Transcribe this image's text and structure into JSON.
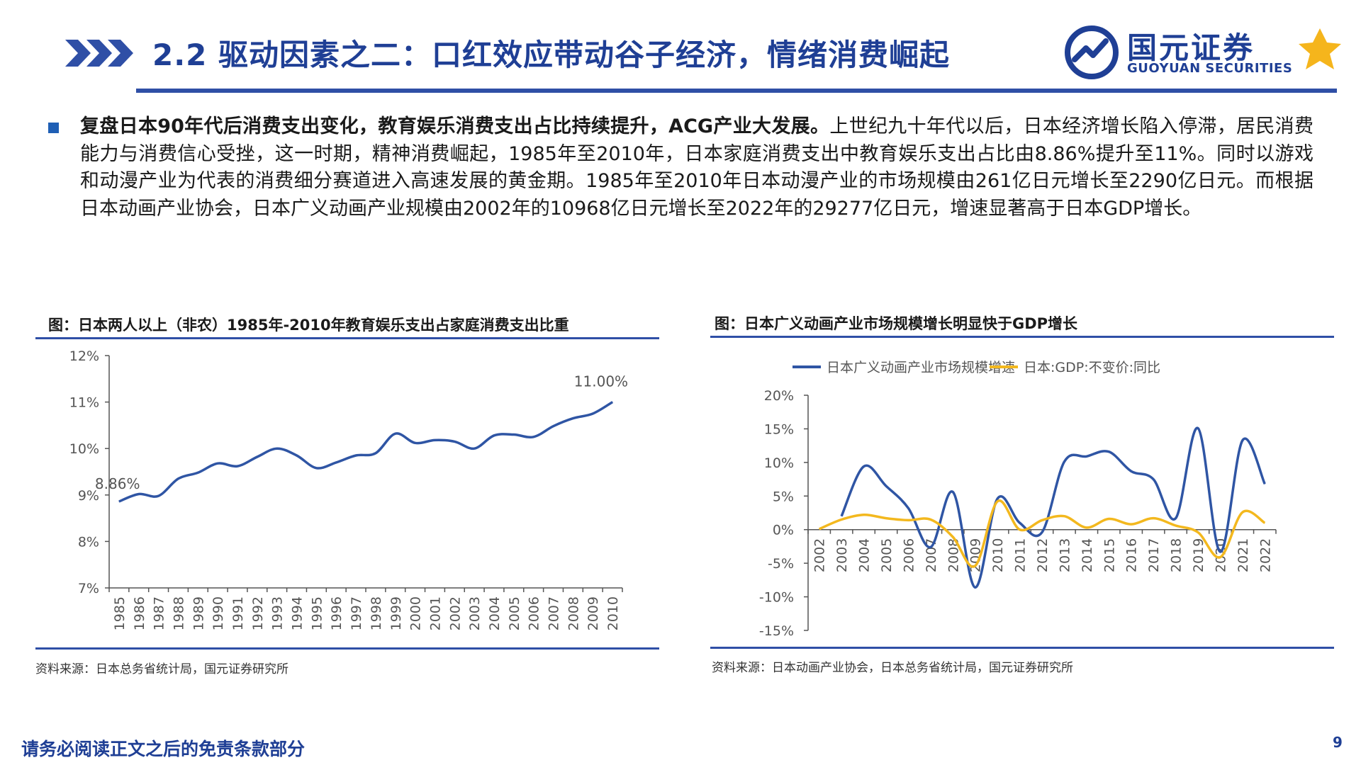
{
  "header": {
    "title": "2.2 驱动因素之二：口红效应带动谷子经济，情绪消费崛起",
    "logo_cn": "国元证券",
    "logo_en": "GUOYUAN SECURITIES"
  },
  "summary": {
    "bold": "复盘日本90年代后消费支出变化，教育娱乐消费支出占比持续提升，ACG产业大发展。",
    "text": "上世纪九十年代以后，日本经济增长陷入停滞，居民消费能力与消费信心受挫，这一时期，精神消费崛起，1985年至2010年，日本家庭消费支出中教育娱乐支出占比由8.86%提升至11%。同时以游戏和动漫产业为代表的消费细分赛道进入高速发展的黄金期。1985年至2010年日本动漫产业的市场规模由261亿日元增长至2290亿日元。而根据日本动画产业协会，日本广义动画产业规模由2002年的10968亿日元增长至2022年的29277亿日元，增速显著高于日本GDP增长。"
  },
  "chart_left": {
    "title": "图：日本两人以上（非农）1985年-2010年教育娱乐支出占家庭消费支出比重",
    "source": "资料来源：日本总务省统计局，国元证券研究所"
  },
  "chart_right": {
    "title": "图：日本广义动画产业市场规模增长明显快于GDP增长",
    "source": "资料来源：日本动画产业协会，日本总务省统计局，国元证券研究所"
  },
  "chart_data": [
    {
      "type": "line",
      "title": "图：日本两人以上（非农）1985年-2010年教育娱乐支出占家庭消费支出比重",
      "x": [
        "1985",
        "1986",
        "1987",
        "1988",
        "1989",
        "1990",
        "1991",
        "1992",
        "1993",
        "1994",
        "1995",
        "1996",
        "1997",
        "1998",
        "1999",
        "2000",
        "2001",
        "2002",
        "2003",
        "2004",
        "2005",
        "2006",
        "2007",
        "2008",
        "2009",
        "2010"
      ],
      "series": [
        {
          "values": [
            8.86,
            9.02,
            8.98,
            9.35,
            9.48,
            9.68,
            9.62,
            9.82,
            10.0,
            9.85,
            9.58,
            9.7,
            9.85,
            9.9,
            10.32,
            10.12,
            10.18,
            10.15,
            10.0,
            10.28,
            10.3,
            10.25,
            10.48,
            10.65,
            10.75,
            11.0
          ],
          "color": "#2f55a4"
        }
      ],
      "annotations": [
        "8.86%",
        "11.00%"
      ],
      "yticks": [
        "12%",
        "11%",
        "10%",
        "9%",
        "8%",
        "7%"
      ],
      "ylim": [
        7,
        12
      ],
      "ylabel": "",
      "xlabel": "",
      "grid": false
    },
    {
      "type": "line",
      "title": "图：日本广义动画产业市场规模增长明显快于GDP增长",
      "x": [
        "2002",
        "2003",
        "2004",
        "2005",
        "2006",
        "2007",
        "2008",
        "2009",
        "2010",
        "2011",
        "2012",
        "2013",
        "2014",
        "2015",
        "2016",
        "2017",
        "2018",
        "2019",
        "2020",
        "2021",
        "2022"
      ],
      "series": [
        {
          "name": "日本广义动画产业市场规模增速",
          "color": "#2f55a4",
          "values": [
            null,
            2.0,
            9.4,
            6.5,
            3.2,
            -2.6,
            5.6,
            -8.6,
            4.6,
            1.0,
            -0.4,
            10.1,
            10.9,
            11.6,
            8.7,
            7.5,
            1.7,
            15.1,
            -3.3,
            13.3,
            6.8
          ]
        },
        {
          "name": "日本:GDP:不变价:同比",
          "color": "#f3b81e",
          "values": [
            0.1,
            1.5,
            2.2,
            1.7,
            1.4,
            1.5,
            -1.1,
            -5.4,
            4.2,
            0.0,
            1.4,
            2.0,
            0.3,
            1.6,
            0.8,
            1.7,
            0.6,
            -0.4,
            -4.1,
            2.6,
            1.0
          ]
        }
      ],
      "legend_position": "top",
      "yticks": [
        "20%",
        "15%",
        "10%",
        "5%",
        "0%",
        "-5%",
        "-10%",
        "-15%"
      ],
      "ylim": [
        -15,
        20
      ],
      "ylabel": "",
      "xlabel": "",
      "grid": false
    }
  ],
  "footer": {
    "disclaimer": "请务必阅读正文之后的免责条款部分",
    "page_number": "9"
  }
}
